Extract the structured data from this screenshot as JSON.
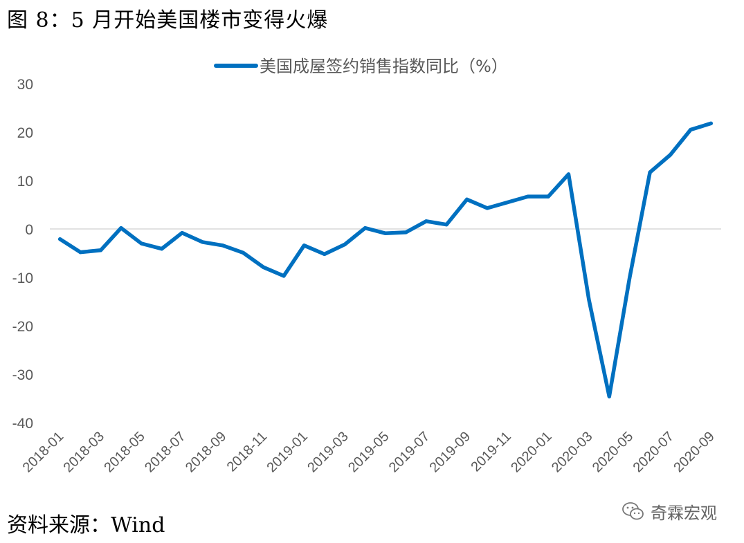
{
  "figure": {
    "title": "图 8：5 月开始美国楼市变得火爆",
    "source": "资料来源：Wind",
    "watermark": "奇霖宏观"
  },
  "colors": {
    "series": "#0070C0",
    "axis": "#D9D9D9",
    "text": "#595959"
  },
  "chart_data": {
    "type": "line",
    "title": "",
    "xlabel": "",
    "ylabel": "",
    "ylim": [
      -40,
      30
    ],
    "y_ticks": [
      30,
      20,
      10,
      0,
      -10,
      -20,
      -30,
      -40
    ],
    "grid": false,
    "legend_position": "top-center",
    "x": [
      "2018-01",
      "2018-02",
      "2018-03",
      "2018-04",
      "2018-05",
      "2018-06",
      "2018-07",
      "2018-08",
      "2018-09",
      "2018-10",
      "2018-11",
      "2018-12",
      "2019-01",
      "2019-02",
      "2019-03",
      "2019-04",
      "2019-05",
      "2019-06",
      "2019-07",
      "2019-08",
      "2019-09",
      "2019-10",
      "2019-11",
      "2019-12",
      "2020-01",
      "2020-02",
      "2020-03",
      "2020-04",
      "2020-05",
      "2020-06",
      "2020-07",
      "2020-08",
      "2020-09"
    ],
    "x_tick_labels": [
      "2018-01",
      "2018-03",
      "2018-05",
      "2018-07",
      "2018-09",
      "2018-11",
      "2019-01",
      "2019-03",
      "2019-05",
      "2019-07",
      "2019-09",
      "2019-11",
      "2020-01",
      "2020-03",
      "2020-05",
      "2020-07",
      "2020-09"
    ],
    "series": [
      {
        "name": "美国成屋签约销售指数同比（%）",
        "color": "#0070C0",
        "values": [
          -2.1,
          -4.8,
          -4.4,
          0.2,
          -3.0,
          -4.1,
          -0.8,
          -2.7,
          -3.4,
          -4.9,
          -7.9,
          -9.7,
          -3.4,
          -5.2,
          -3.2,
          0.2,
          -0.9,
          -0.7,
          1.6,
          0.9,
          6.1,
          4.3,
          5.5,
          6.7,
          6.7,
          11.3,
          -14.6,
          -34.6,
          -10.1,
          11.7,
          15.3,
          20.5,
          21.8
        ]
      }
    ]
  }
}
